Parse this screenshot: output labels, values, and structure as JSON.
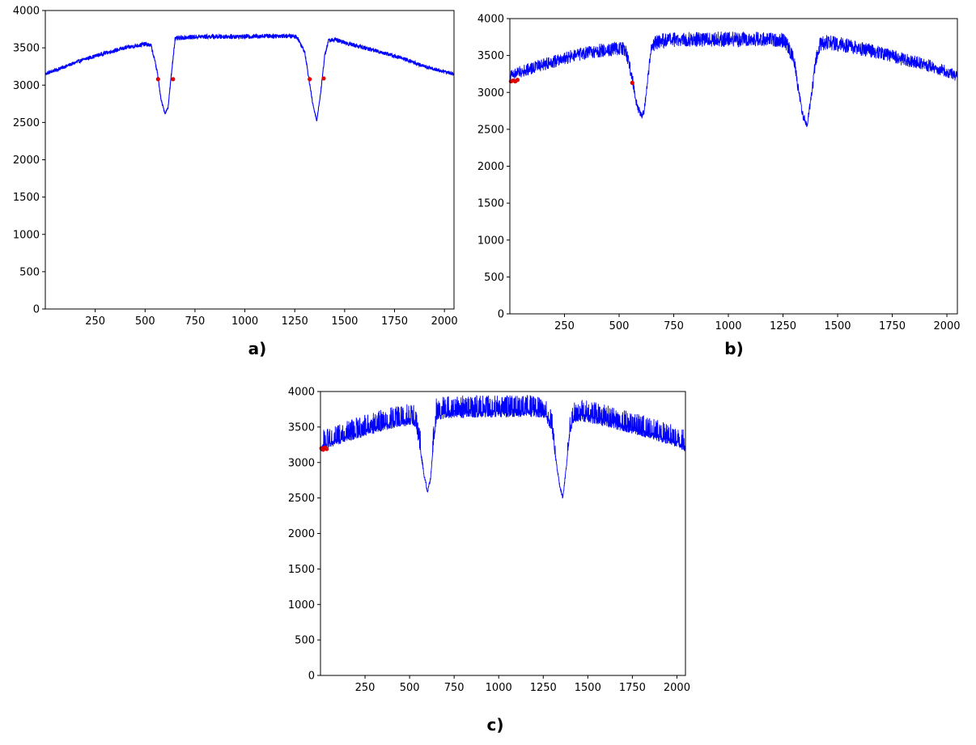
{
  "chart_data": [
    {
      "type": "line",
      "caption": "a)",
      "xlabel": "",
      "ylabel": "",
      "xlim": [
        0,
        2048
      ],
      "ylim": [
        0,
        4000
      ],
      "xticks": [
        250,
        500,
        750,
        1000,
        1250,
        1500,
        1750,
        2000
      ],
      "yticks": [
        0,
        500,
        1000,
        1500,
        2000,
        2500,
        3000,
        3500,
        4000
      ],
      "grid": false,
      "noise": 30,
      "spikes": 0,
      "series": [
        {
          "color": "#0000ff",
          "x": [
            0,
            100,
            200,
            300,
            400,
            500,
            530,
            560,
            580,
            600,
            615,
            630,
            650,
            700,
            800,
            900,
            1000,
            1100,
            1200,
            1260,
            1300,
            1320,
            1340,
            1360,
            1380,
            1400,
            1420,
            1450,
            1500,
            1600,
            1700,
            1800,
            1900,
            2000,
            2048
          ],
          "y": [
            3150,
            3250,
            3350,
            3430,
            3500,
            3550,
            3530,
            3200,
            2800,
            2620,
            2700,
            3100,
            3620,
            3640,
            3650,
            3650,
            3650,
            3660,
            3660,
            3650,
            3450,
            3100,
            2750,
            2520,
            2900,
            3400,
            3600,
            3610,
            3570,
            3500,
            3430,
            3350,
            3250,
            3180,
            3150
          ]
        }
      ],
      "markers": {
        "color": "#e00000",
        "x": [
          565,
          640,
          1325,
          1395
        ],
        "y": [
          3080,
          3080,
          3080,
          3090
        ]
      }
    },
    {
      "type": "line",
      "caption": "b)",
      "xlabel": "",
      "ylabel": "",
      "xlim": [
        0,
        2048
      ],
      "ylim": [
        0,
        4000
      ],
      "xticks": [
        250,
        500,
        750,
        1000,
        1250,
        1500,
        1750,
        2000
      ],
      "yticks": [
        0,
        500,
        1000,
        1500,
        2000,
        2500,
        3000,
        3500,
        4000
      ],
      "grid": false,
      "noise": 100,
      "spikes": 0,
      "series": [
        {
          "color": "#0000ff",
          "x": [
            0,
            100,
            200,
            300,
            400,
            500,
            530,
            560,
            580,
            600,
            615,
            630,
            650,
            700,
            800,
            900,
            1000,
            1100,
            1200,
            1260,
            1300,
            1320,
            1340,
            1360,
            1380,
            1400,
            1420,
            1450,
            1500,
            1600,
            1700,
            1800,
            1900,
            2000,
            2048
          ],
          "y": [
            3230,
            3330,
            3420,
            3500,
            3560,
            3600,
            3580,
            3200,
            2850,
            2680,
            2750,
            3150,
            3650,
            3700,
            3720,
            3720,
            3720,
            3720,
            3720,
            3700,
            3450,
            3050,
            2700,
            2560,
            2950,
            3450,
            3650,
            3680,
            3660,
            3600,
            3530,
            3450,
            3380,
            3280,
            3220
          ]
        }
      ],
      "markers": {
        "color": "#e00000",
        "x": [
          5,
          15,
          25,
          35,
          560
        ],
        "y": [
          3150,
          3160,
          3150,
          3170,
          3130
        ]
      }
    },
    {
      "type": "line",
      "caption": "c)",
      "xlabel": "",
      "ylabel": "",
      "xlim": [
        0,
        2048
      ],
      "ylim": [
        0,
        4000
      ],
      "xticks": [
        250,
        500,
        750,
        1000,
        1250,
        1500,
        1750,
        2000
      ],
      "yticks": [
        0,
        500,
        1000,
        1500,
        2000,
        2500,
        3000,
        3500,
        4000
      ],
      "grid": false,
      "noise": 60,
      "spikes": 230,
      "series": [
        {
          "color": "#0000ff",
          "x": [
            0,
            100,
            200,
            300,
            400,
            500,
            530,
            560,
            580,
            600,
            615,
            630,
            650,
            700,
            800,
            900,
            1000,
            1100,
            1200,
            1260,
            1300,
            1320,
            1340,
            1360,
            1380,
            1400,
            1420,
            1450,
            1500,
            1600,
            1700,
            1800,
            1900,
            2000,
            2048
          ],
          "y": [
            3200,
            3300,
            3380,
            3460,
            3530,
            3580,
            3560,
            3200,
            2850,
            2600,
            2720,
            3150,
            3650,
            3680,
            3690,
            3690,
            3690,
            3700,
            3700,
            3690,
            3450,
            3050,
            2700,
            2500,
            2950,
            3450,
            3620,
            3640,
            3620,
            3560,
            3490,
            3420,
            3350,
            3260,
            3200
          ]
        }
      ],
      "markers": {
        "color": "#e00000",
        "x": [
          5,
          15,
          25,
          35
        ],
        "y": [
          3200,
          3180,
          3210,
          3190
        ]
      }
    }
  ]
}
